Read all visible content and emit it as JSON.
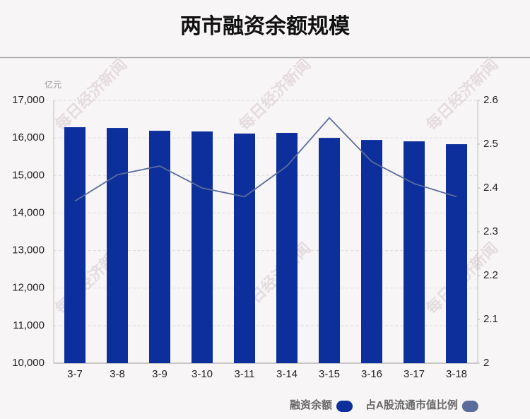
{
  "chart_data": {
    "type": "bar",
    "title": "两市融资余额规模",
    "y_unit": "亿元",
    "watermark": "每日经济新闻",
    "categories": [
      "3-7",
      "3-8",
      "3-9",
      "3-10",
      "3-11",
      "3-14",
      "3-15",
      "3-16",
      "3-17",
      "3-18"
    ],
    "series": [
      {
        "name": "融资余额",
        "color": "#0d2f9c",
        "type": "bar",
        "values": [
          16284,
          16265,
          16190,
          16170,
          16115,
          16134,
          16000,
          15945,
          15908,
          15832
        ]
      },
      {
        "name": "占A股流通市值比例",
        "color": "#5a6c9b",
        "type": "line",
        "axis": "y2",
        "values": [
          2.37,
          2.43,
          2.45,
          2.4,
          2.38,
          2.45,
          2.56,
          2.46,
          2.41,
          2.38
        ]
      }
    ],
    "ylim": [
      10000,
      17000
    ],
    "yticks": [
      {
        "value": 10000,
        "label": "10,000"
      },
      {
        "value": 11000,
        "label": "11,000"
      },
      {
        "value": 12000,
        "label": "12,000"
      },
      {
        "value": 13000,
        "label": "13,000"
      },
      {
        "value": 14000,
        "label": "14,000"
      },
      {
        "value": 15000,
        "label": "15,000"
      },
      {
        "value": 16000,
        "label": "16,000"
      },
      {
        "value": 17000,
        "label": "17,000"
      }
    ],
    "y2lim": [
      2,
      2.6
    ],
    "y2ticks": [
      2,
      2.1,
      2.2,
      2.3,
      2.4,
      2.5,
      2.6
    ],
    "grid": true,
    "legend": "bottom-right"
  }
}
